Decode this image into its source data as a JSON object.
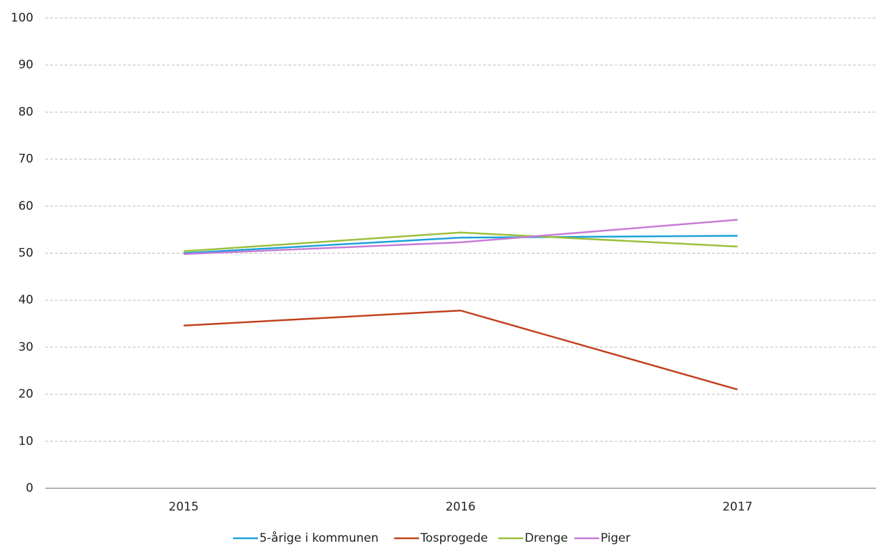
{
  "chart_data": {
    "type": "line",
    "categories": [
      "2015",
      "2016",
      "2017"
    ],
    "series": [
      {
        "name": "5-årige i kommunen",
        "color": "#1ba1d8",
        "values": [
          50.0,
          53.3,
          53.7
        ]
      },
      {
        "name": "Tosprogede",
        "color": "#c0401e",
        "values": [
          34.6,
          37.8,
          21.0
        ]
      },
      {
        "name": "Drenge",
        "color": "#9cbf3a",
        "values": [
          50.4,
          54.4,
          51.4
        ]
      },
      {
        "name": "Piger",
        "color": "#c77bd6",
        "values": [
          49.8,
          52.3,
          57.1
        ]
      }
    ],
    "ylim": [
      0,
      100
    ],
    "yticks": [
      0,
      10,
      20,
      30,
      40,
      50,
      60,
      70,
      80,
      90,
      100
    ],
    "grid": true,
    "legend": "bottom"
  }
}
